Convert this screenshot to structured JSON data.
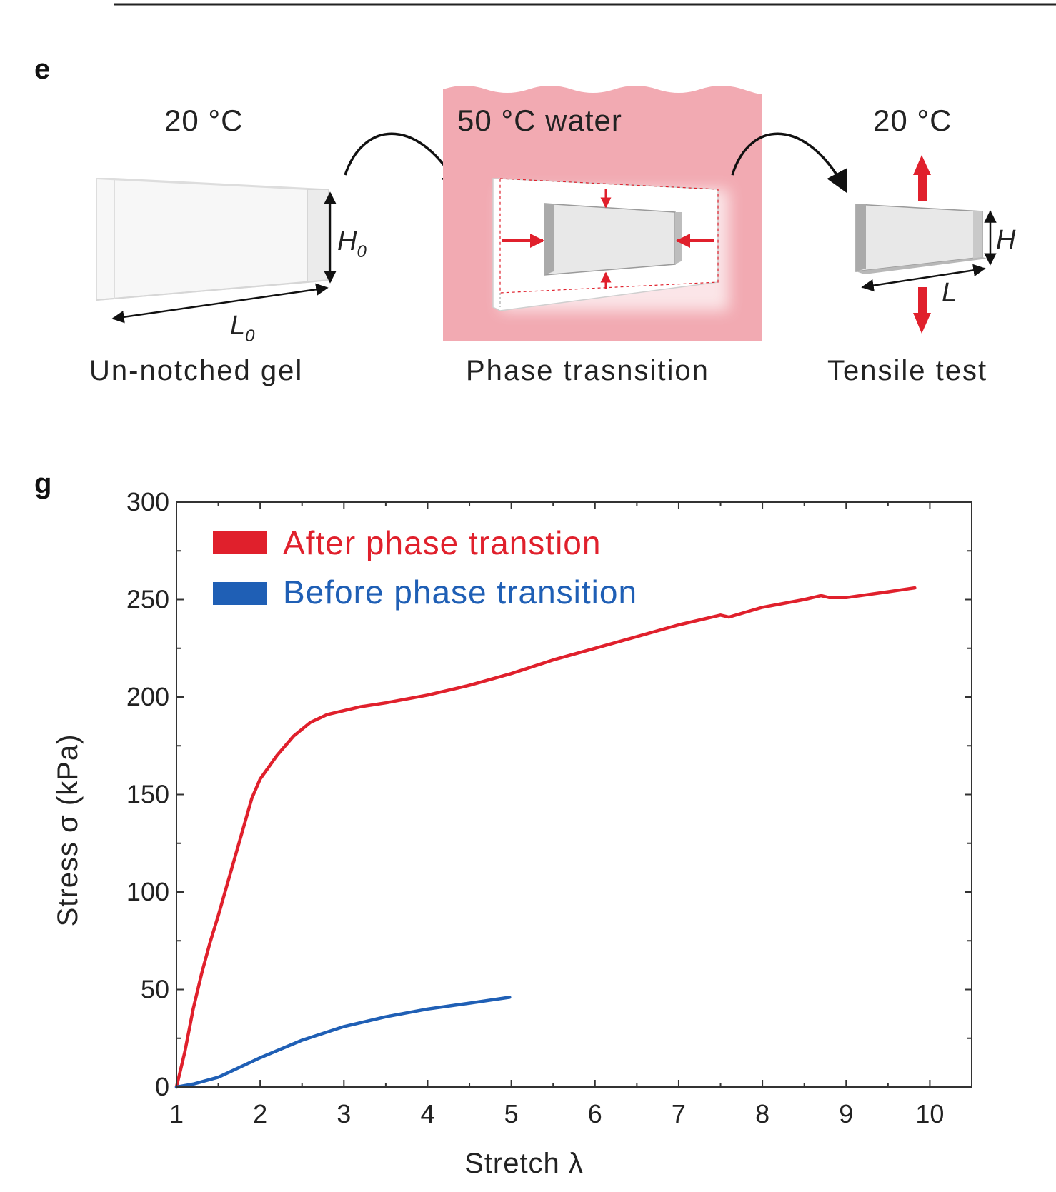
{
  "panel_e": {
    "letter": "e",
    "steps": [
      {
        "temperature": "20 °C",
        "caption": "Un-notched gel",
        "height_label": "H",
        "height_sub": "0",
        "length_label": "L",
        "length_sub": "0"
      },
      {
        "temperature": "50 °C water",
        "caption": "Phase trasnsition"
      },
      {
        "temperature": "20 °C",
        "caption": "Tensile test",
        "height_label": "H",
        "length_label": "L"
      }
    ],
    "colors": {
      "water": "#f2aab2",
      "arrow": "#e0202c",
      "gel": "#e6e6e6"
    }
  },
  "panel_g": {
    "letter": "g"
  },
  "chart_data": {
    "type": "line",
    "xlabel": "Stretch λ",
    "ylabel": "Stress σ (kPa)",
    "xlim": [
      1,
      10.5
    ],
    "ylim": [
      0,
      300
    ],
    "xticks": [
      1,
      2,
      3,
      4,
      5,
      6,
      7,
      8,
      9,
      10
    ],
    "yticks": [
      0,
      50,
      100,
      150,
      200,
      250,
      300
    ],
    "legend_position": "top-left",
    "grid": false,
    "series": [
      {
        "name": "After phase transtion",
        "color": "#e0202c",
        "x": [
          1.0,
          1.1,
          1.2,
          1.3,
          1.4,
          1.5,
          1.6,
          1.7,
          1.8,
          1.9,
          2.0,
          2.2,
          2.4,
          2.6,
          2.8,
          3.0,
          3.2,
          3.5,
          4.0,
          4.5,
          5.0,
          5.5,
          6.0,
          6.5,
          7.0,
          7.5,
          7.6,
          8.0,
          8.5,
          8.7,
          8.8,
          9.0,
          9.5,
          9.82
        ],
        "y": [
          0,
          18,
          40,
          58,
          74,
          88,
          103,
          118,
          133,
          148,
          158,
          170,
          180,
          187,
          191,
          193,
          195,
          197,
          201,
          206,
          212,
          219,
          225,
          231,
          237,
          242,
          241,
          246,
          250,
          252,
          251,
          251,
          254,
          256
        ]
      },
      {
        "name": "Before phase transition",
        "color": "#1f5fb5",
        "x": [
          1.0,
          1.2,
          1.5,
          2.0,
          2.5,
          3.0,
          3.5,
          4.0,
          4.5,
          4.98
        ],
        "y": [
          0,
          1.5,
          5,
          15,
          24,
          31,
          36,
          40,
          43,
          46
        ]
      }
    ]
  }
}
